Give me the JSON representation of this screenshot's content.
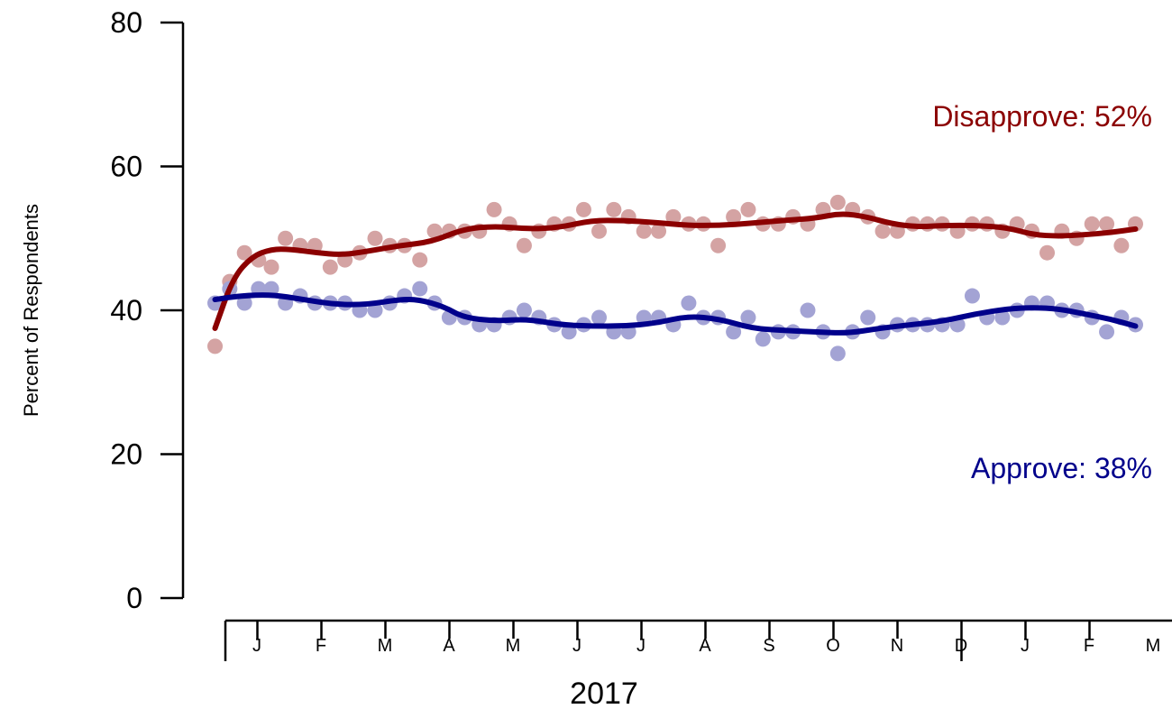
{
  "chart_data": {
    "type": "scatter",
    "title": "",
    "ylabel": "Percent of Respondents",
    "xlabel": "2017",
    "ylim": [
      0,
      80
    ],
    "y_ticks": [
      0,
      20,
      40,
      60,
      80
    ],
    "x_unit": "months since Jan 1 2017",
    "xlim": [
      0.5,
      15
    ],
    "month_labels": [
      "J",
      "F",
      "M",
      "A",
      "M",
      "J",
      "J",
      "A",
      "S",
      "O",
      "N",
      "D",
      "J",
      "F",
      "M"
    ],
    "month_boundaries": [
      1,
      2,
      3,
      4,
      5,
      6,
      7,
      8,
      9,
      10,
      11,
      12,
      13,
      14
    ],
    "year_label": "2017",
    "series": [
      {
        "name": "Disapprove",
        "label": "Disapprove: 52%",
        "color": "#8B0000",
        "point_color": "#D4A3A3",
        "points": [
          [
            0.62,
            35
          ],
          [
            0.85,
            44
          ],
          [
            1.08,
            48
          ],
          [
            1.3,
            47
          ],
          [
            1.5,
            46
          ],
          [
            1.72,
            50
          ],
          [
            1.95,
            49
          ],
          [
            2.18,
            49
          ],
          [
            2.42,
            46
          ],
          [
            2.65,
            47
          ],
          [
            2.88,
            48
          ],
          [
            3.12,
            50
          ],
          [
            3.35,
            49
          ],
          [
            3.58,
            49
          ],
          [
            3.82,
            47
          ],
          [
            4.05,
            51
          ],
          [
            4.28,
            51
          ],
          [
            4.52,
            51
          ],
          [
            4.75,
            51
          ],
          [
            4.98,
            54
          ],
          [
            5.22,
            52
          ],
          [
            5.45,
            49
          ],
          [
            5.68,
            51
          ],
          [
            5.92,
            52
          ],
          [
            6.15,
            52
          ],
          [
            6.38,
            54
          ],
          [
            6.62,
            51
          ],
          [
            6.85,
            54
          ],
          [
            7.08,
            53
          ],
          [
            7.32,
            51
          ],
          [
            7.55,
            51
          ],
          [
            7.78,
            53
          ],
          [
            8.02,
            52
          ],
          [
            8.25,
            52
          ],
          [
            8.48,
            49
          ],
          [
            8.72,
            53
          ],
          [
            8.95,
            54
          ],
          [
            9.18,
            52
          ],
          [
            9.42,
            52
          ],
          [
            9.65,
            53
          ],
          [
            9.88,
            52
          ],
          [
            10.12,
            54
          ],
          [
            10.35,
            55
          ],
          [
            10.58,
            54
          ],
          [
            10.82,
            53
          ],
          [
            11.05,
            51
          ],
          [
            11.28,
            51
          ],
          [
            11.52,
            52
          ],
          [
            11.75,
            52
          ],
          [
            11.98,
            52
          ],
          [
            12.22,
            51
          ],
          [
            12.45,
            52
          ],
          [
            12.68,
            52
          ],
          [
            12.92,
            51
          ],
          [
            13.15,
            52
          ],
          [
            13.38,
            51
          ],
          [
            13.62,
            48
          ],
          [
            13.85,
            51
          ],
          [
            14.08,
            50
          ],
          [
            14.32,
            52
          ],
          [
            14.55,
            52
          ],
          [
            14.78,
            49
          ],
          [
            15.0,
            52
          ]
        ],
        "trend": [
          [
            0.62,
            37.5
          ],
          [
            0.9,
            44.5
          ],
          [
            1.2,
            47.5
          ],
          [
            1.5,
            48.5
          ],
          [
            1.8,
            48.5
          ],
          [
            2.2,
            48
          ],
          [
            2.6,
            47.7
          ],
          [
            3.0,
            48.2
          ],
          [
            3.5,
            49
          ],
          [
            4.0,
            49.5
          ],
          [
            4.5,
            51.3
          ],
          [
            5.0,
            51.7
          ],
          [
            5.5,
            51.3
          ],
          [
            6.0,
            51.5
          ],
          [
            6.5,
            52.5
          ],
          [
            7.0,
            52.5
          ],
          [
            7.5,
            52.2
          ],
          [
            8.0,
            51.8
          ],
          [
            8.5,
            51.8
          ],
          [
            9.0,
            52.1
          ],
          [
            9.5,
            52.5
          ],
          [
            10.0,
            52.8
          ],
          [
            10.4,
            53.5
          ],
          [
            10.8,
            53
          ],
          [
            11.2,
            52
          ],
          [
            11.6,
            51.6
          ],
          [
            12.0,
            51.8
          ],
          [
            12.5,
            51.8
          ],
          [
            13.0,
            51.5
          ],
          [
            13.4,
            50.5
          ],
          [
            13.8,
            50.3
          ],
          [
            14.2,
            50.5
          ],
          [
            14.6,
            50.8
          ],
          [
            15.0,
            51.3
          ]
        ]
      },
      {
        "name": "Approve",
        "label": "Approve: 38%",
        "color": "#00008B",
        "point_color": "#A3A3D4",
        "points": [
          [
            0.62,
            41
          ],
          [
            0.85,
            43
          ],
          [
            1.08,
            41
          ],
          [
            1.3,
            43
          ],
          [
            1.5,
            43
          ],
          [
            1.72,
            41
          ],
          [
            1.95,
            42
          ],
          [
            2.18,
            41
          ],
          [
            2.42,
            41
          ],
          [
            2.65,
            41
          ],
          [
            2.88,
            40
          ],
          [
            3.12,
            40
          ],
          [
            3.35,
            41
          ],
          [
            3.58,
            42
          ],
          [
            3.82,
            43
          ],
          [
            4.05,
            41
          ],
          [
            4.28,
            39
          ],
          [
            4.52,
            39
          ],
          [
            4.75,
            38
          ],
          [
            4.98,
            38
          ],
          [
            5.22,
            39
          ],
          [
            5.45,
            40
          ],
          [
            5.68,
            39
          ],
          [
            5.92,
            38
          ],
          [
            6.15,
            37
          ],
          [
            6.38,
            38
          ],
          [
            6.62,
            39
          ],
          [
            6.85,
            37
          ],
          [
            7.08,
            37
          ],
          [
            7.32,
            39
          ],
          [
            7.55,
            39
          ],
          [
            7.78,
            38
          ],
          [
            8.02,
            41
          ],
          [
            8.25,
            39
          ],
          [
            8.48,
            39
          ],
          [
            8.72,
            37
          ],
          [
            8.95,
            39
          ],
          [
            9.18,
            36
          ],
          [
            9.42,
            37
          ],
          [
            9.65,
            37
          ],
          [
            9.88,
            40
          ],
          [
            10.12,
            37
          ],
          [
            10.35,
            34
          ],
          [
            10.58,
            37
          ],
          [
            10.82,
            39
          ],
          [
            11.05,
            37
          ],
          [
            11.28,
            38
          ],
          [
            11.52,
            38
          ],
          [
            11.75,
            38
          ],
          [
            11.98,
            38
          ],
          [
            12.22,
            38
          ],
          [
            12.45,
            42
          ],
          [
            12.68,
            39
          ],
          [
            12.92,
            39
          ],
          [
            13.15,
            40
          ],
          [
            13.38,
            41
          ],
          [
            13.62,
            41
          ],
          [
            13.85,
            40
          ],
          [
            14.08,
            40
          ],
          [
            14.32,
            39
          ],
          [
            14.55,
            37
          ],
          [
            14.78,
            39
          ],
          [
            15.0,
            38
          ]
        ],
        "trend": [
          [
            0.62,
            41.5
          ],
          [
            1.0,
            42
          ],
          [
            1.5,
            42.2
          ],
          [
            2.0,
            41.5
          ],
          [
            2.5,
            40.8
          ],
          [
            3.0,
            40.8
          ],
          [
            3.5,
            41.5
          ],
          [
            3.8,
            41.5
          ],
          [
            4.2,
            40.5
          ],
          [
            4.5,
            39
          ],
          [
            5.0,
            38.5
          ],
          [
            5.5,
            38.8
          ],
          [
            6.0,
            38
          ],
          [
            6.5,
            37.8
          ],
          [
            7.0,
            37.8
          ],
          [
            7.5,
            38.2
          ],
          [
            8.0,
            39.2
          ],
          [
            8.5,
            38.8
          ],
          [
            9.0,
            37.5
          ],
          [
            9.5,
            37.2
          ],
          [
            10.0,
            37
          ],
          [
            10.5,
            36.8
          ],
          [
            11.0,
            37.5
          ],
          [
            11.5,
            38
          ],
          [
            12.0,
            38.5
          ],
          [
            12.5,
            39.5
          ],
          [
            13.0,
            40.2
          ],
          [
            13.4,
            40.4
          ],
          [
            13.8,
            40.2
          ],
          [
            14.2,
            39.5
          ],
          [
            14.6,
            38.8
          ],
          [
            15.0,
            37.8
          ]
        ]
      }
    ]
  }
}
